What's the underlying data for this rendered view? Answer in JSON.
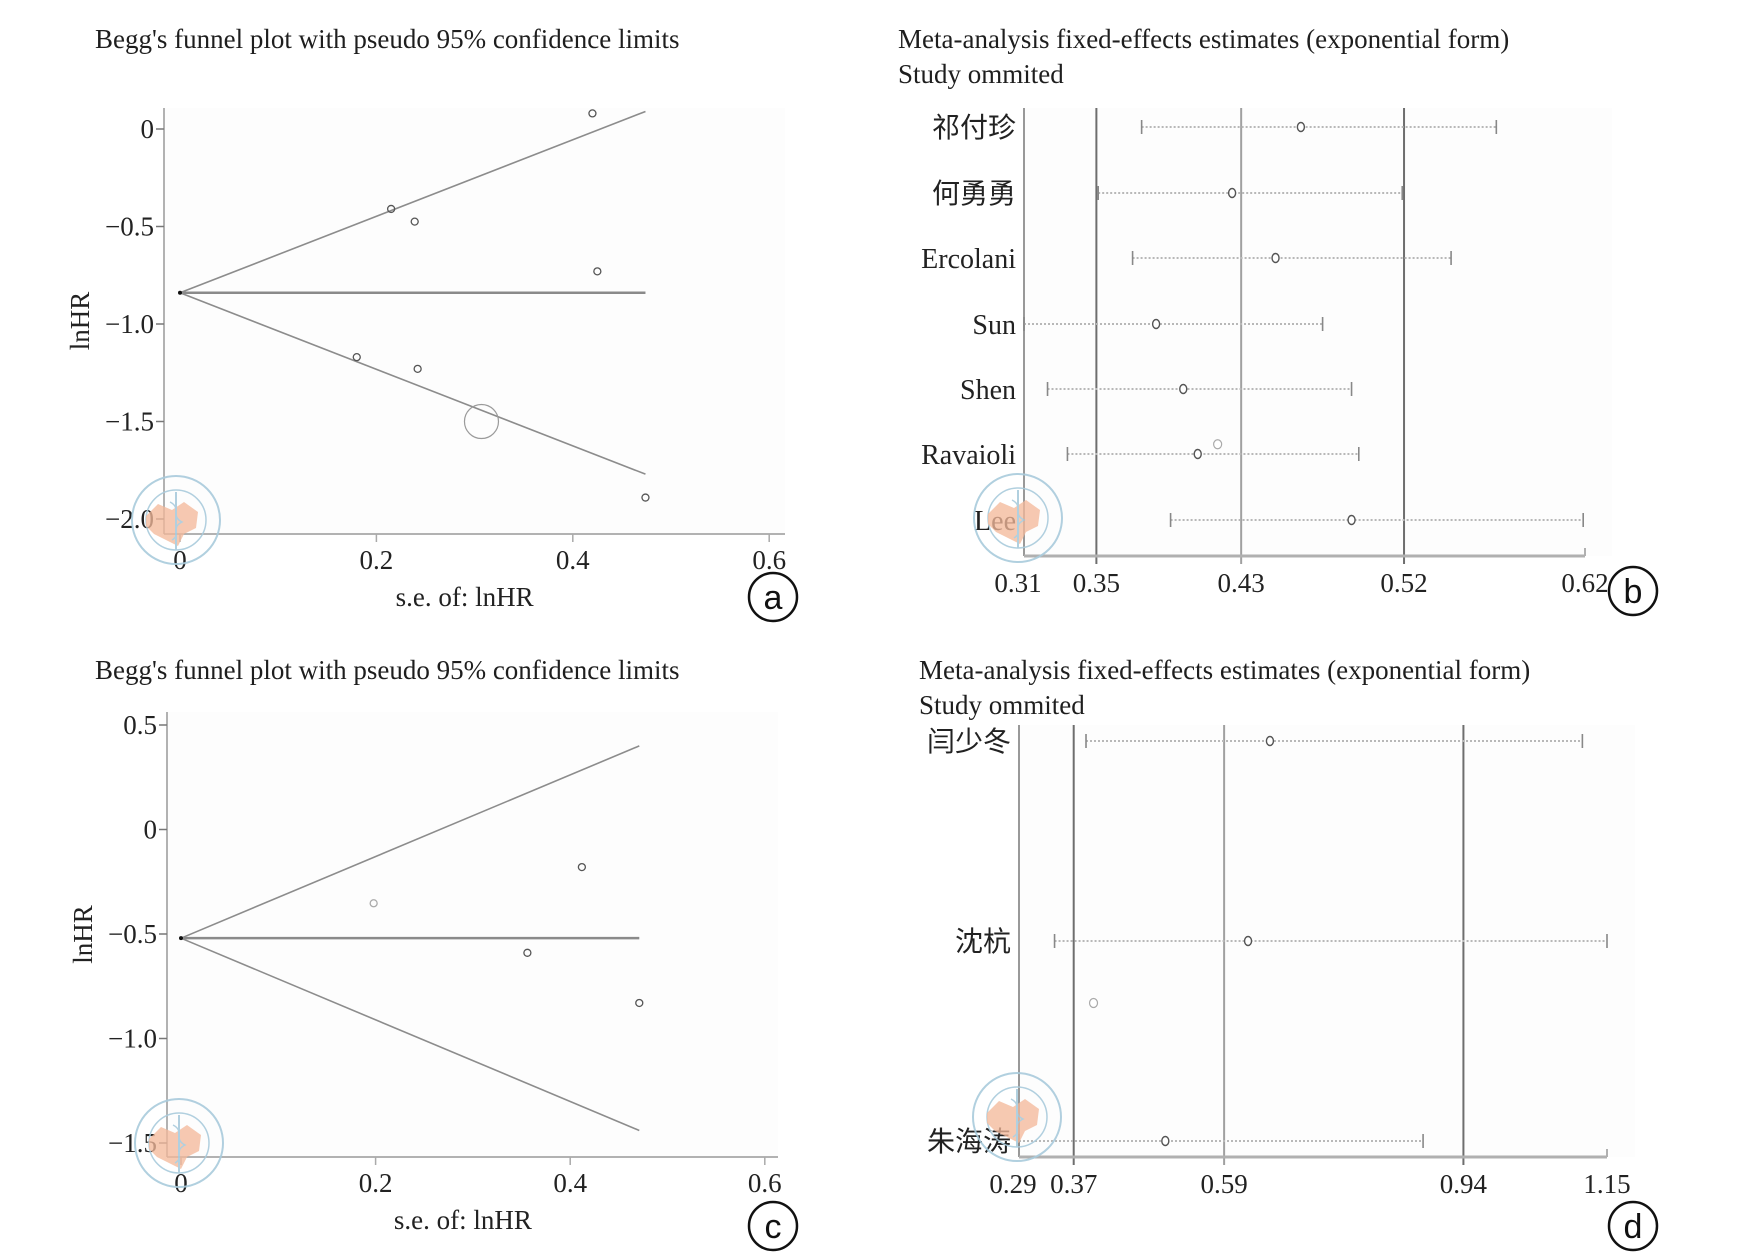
{
  "figure": {
    "panels": [
      {
        "id": "a",
        "letter": "a",
        "title": "Begg's funnel plot with pseudo 95% confidence limits"
      },
      {
        "id": "b",
        "letter": "b",
        "title_line1": "Meta-analysis fixed-effects estimates (exponential form)",
        "title_line2": "Study ommited"
      },
      {
        "id": "c",
        "letter": "c",
        "title": "Begg's funnel plot with pseudo 95% confidence limits"
      },
      {
        "id": "d",
        "letter": "d",
        "title_line1": "Meta-analysis fixed-effects estimates (exponential form)",
        "title_line2": "Study ommited"
      }
    ],
    "colors": {
      "line": "#8c8c8c",
      "axis": "#999999",
      "marker": "#555555",
      "refline": "#777777",
      "watermark_blue": "#9ec3d6",
      "watermark_map": "#f3b89a"
    }
  },
  "chart_data": [
    {
      "panel": "a",
      "type": "scatter",
      "title": "Begg's funnel plot with pseudo 95% confidence limits",
      "xlabel": "s.e. of: lnHR",
      "ylabel": "lnHR",
      "xlim": [
        0,
        0.6
      ],
      "ylim": [
        -2.0,
        0.1
      ],
      "xticks": [
        0,
        0.2,
        0.4,
        0.6
      ],
      "xtick_labels": [
        "0",
        "0.2",
        "0.4",
        "0.6"
      ],
      "yticks": [
        0,
        -0.5,
        -1.0,
        -1.5,
        -2.0
      ],
      "ytick_labels": [
        "0",
        "−0.5",
        "−1.0",
        "−1.5",
        "−2.0"
      ],
      "pooled_estimate": -0.84,
      "funnel_max_se": 0.474,
      "funnel_upper_end": 0.09,
      "funnel_lower_end": -1.77,
      "points": [
        {
          "se": 0.42,
          "lnhr": 0.08
        },
        {
          "se": 0.215,
          "lnhr": -0.41
        },
        {
          "se": 0.239,
          "lnhr": -0.475
        },
        {
          "se": 0.425,
          "lnhr": -0.73
        },
        {
          "se": 0.18,
          "lnhr": -1.17
        },
        {
          "se": 0.242,
          "lnhr": -1.23
        },
        {
          "se": 0.307,
          "lnhr": -1.5,
          "large": true
        },
        {
          "se": 0.474,
          "lnhr": -1.89
        }
      ],
      "grid": false
    },
    {
      "panel": "b",
      "type": "scatter",
      "subtype": "forest-influence",
      "title": "Meta-analysis fixed-effects estimates (exponential form)",
      "subtitle": "Study ommited",
      "xlim": [
        0.31,
        0.62
      ],
      "xticks": [
        0.31,
        0.35,
        0.43,
        0.52,
        0.62
      ],
      "xtick_labels": [
        "0.31",
        "0.35",
        "0.43",
        "0.52",
        "0.62"
      ],
      "reference_lines": [
        0.35,
        0.43,
        0.52
      ],
      "studies": [
        {
          "label": "祁付珍",
          "lower": 0.375,
          "estimate": 0.463,
          "upper": 0.571
        },
        {
          "label": "何勇勇",
          "lower": 0.351,
          "estimate": 0.425,
          "upper": 0.519
        },
        {
          "label": "Ercolani",
          "lower": 0.37,
          "estimate": 0.449,
          "upper": 0.546
        },
        {
          "label": "Sun",
          "lower": 0.31,
          "estimate": 0.383,
          "upper": 0.475
        },
        {
          "label": "Shen",
          "lower": 0.323,
          "estimate": 0.398,
          "upper": 0.491
        },
        {
          "label": "Ravaioli",
          "lower": 0.334,
          "estimate": 0.406,
          "upper": 0.495
        },
        {
          "label": "Lee",
          "lower": 0.391,
          "estimate": 0.491,
          "upper": 0.619
        }
      ],
      "extra_markers": [
        {
          "value": 0.417,
          "between_rows": [
            "Shen",
            "Ravaioli"
          ],
          "offset": 0.85
        }
      ],
      "grid": false
    },
    {
      "panel": "c",
      "type": "scatter",
      "title": "Begg's funnel plot with pseudo 95% confidence limits",
      "xlabel": "s.e. of: lnHR",
      "ylabel": "lnHR",
      "xlim": [
        0,
        0.6
      ],
      "ylim": [
        -1.5,
        0.5
      ],
      "xticks": [
        0,
        0.2,
        0.4,
        0.6
      ],
      "xtick_labels": [
        "0",
        "0.2",
        "0.4",
        "0.6"
      ],
      "yticks": [
        0.5,
        0,
        -0.5,
        -1.0,
        -1.5
      ],
      "ytick_labels": [
        "0.5",
        "0",
        "−0.5",
        "−1.0",
        "−1.5"
      ],
      "pooled_estimate": -0.52,
      "funnel_max_se": 0.471,
      "funnel_upper_end": 0.4,
      "funnel_lower_end": -1.44,
      "points": [
        {
          "se": 0.198,
          "lnhr": -0.353,
          "light": true
        },
        {
          "se": 0.412,
          "lnhr": -0.18
        },
        {
          "se": 0.356,
          "lnhr": -0.59
        },
        {
          "se": 0.471,
          "lnhr": -0.83
        }
      ],
      "grid": false
    },
    {
      "panel": "d",
      "type": "scatter",
      "subtype": "forest-influence",
      "title": "Meta-analysis fixed-effects estimates (exponential form)",
      "subtitle": "Study ommited",
      "xlim": [
        0.29,
        1.15
      ],
      "xticks": [
        0.29,
        0.37,
        0.59,
        0.94,
        1.15
      ],
      "xtick_labels": [
        "0.29",
        "0.37",
        "0.59",
        "0.94",
        "1.15"
      ],
      "reference_lines": [
        0.37,
        0.59,
        0.94
      ],
      "studies": [
        {
          "label": "闫少冬",
          "lower": 0.388,
          "estimate": 0.657,
          "upper": 1.114
        },
        {
          "label": "沈杭",
          "lower": 0.342,
          "estimate": 0.625,
          "upper": 1.15
        },
        {
          "label": "朱海涛",
          "lower": 0.29,
          "estimate": 0.504,
          "upper": 0.881
        }
      ],
      "extra_markers": [
        {
          "value": 0.399,
          "between_rows": [
            "沈杭",
            "朱海涛"
          ],
          "offset": 0.31
        }
      ],
      "grid": false
    }
  ]
}
